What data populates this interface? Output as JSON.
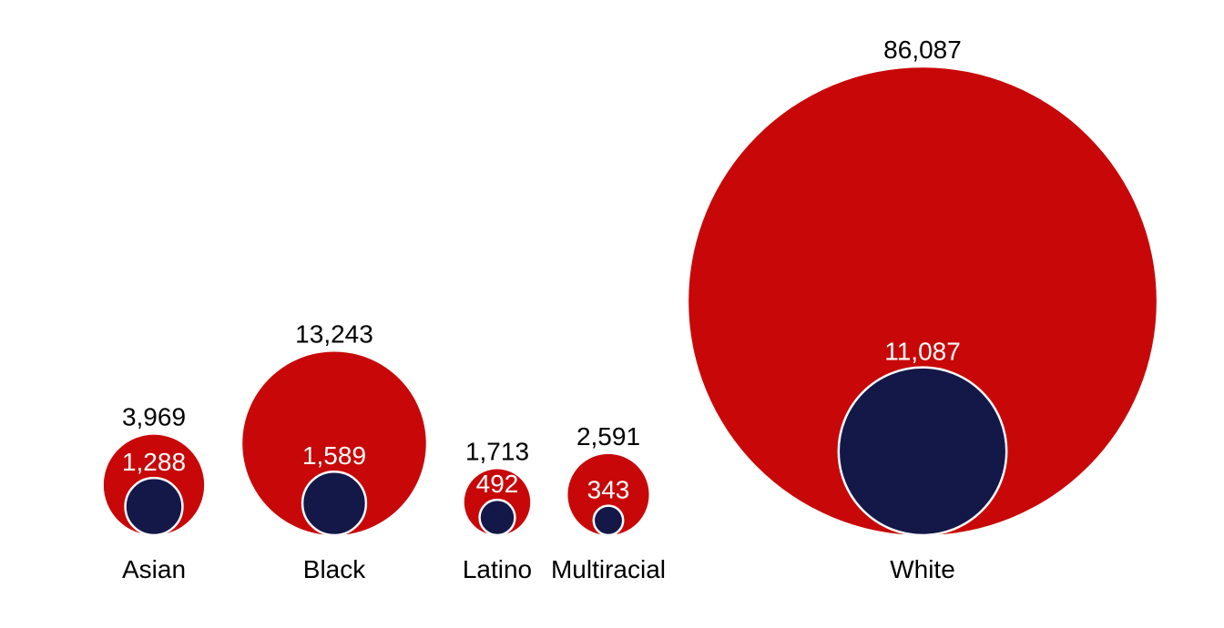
{
  "chart_data": {
    "type": "bubble",
    "title": "",
    "categories": [
      "Asian",
      "Black",
      "Latino",
      "Multiracial",
      "White"
    ],
    "series": [
      {
        "values": [
          3969,
          13243,
          1713,
          2591,
          86087
        ],
        "value_labels": [
          "3,969",
          "13,243",
          "1,713",
          "2,591",
          "86,087"
        ],
        "color": "#c80808"
      },
      {
        "values": [
          1288,
          1589,
          492,
          343,
          11087
        ],
        "value_labels": [
          "1,288",
          "1,589",
          "492",
          "343",
          "11,087"
        ],
        "color": "#131848"
      }
    ],
    "bubble_scaling": "area proportional to value; inner circle nested at bottom of outer circle"
  }
}
